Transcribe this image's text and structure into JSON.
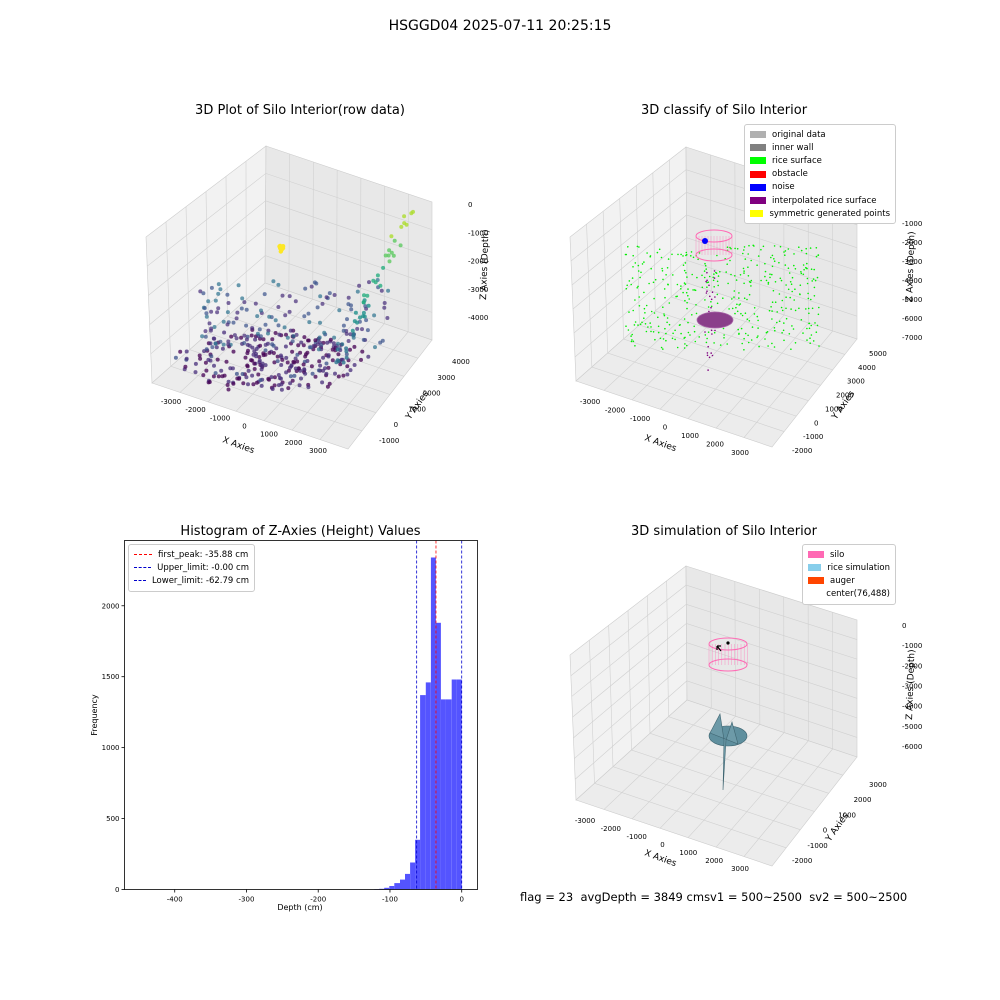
{
  "suptitle": "HSGGD04 2025-07-11 20:25:15",
  "colors": {
    "wall": "#f2f2f2",
    "grid": "#d0d0d0",
    "silo": "#ff69b4",
    "rice": "#5f8f9e",
    "histbar": "#4b4bff",
    "peak": "#ff0000",
    "limit": "#0000cc"
  },
  "chart_data": [
    {
      "id": "raw",
      "type": "scatter",
      "title": "3D Plot of Silo Interior(row data)",
      "xlabel": "X Axies",
      "ylabel": "Y Axies",
      "zlabel": "Z Axies (Depth)",
      "xlim": [
        -3500,
        3500
      ],
      "ylim": [
        -1500,
        4500
      ],
      "zlim": [
        -4500,
        0
      ],
      "xticks": [
        "-3000",
        "-2000",
        "-1000",
        "0",
        "1000",
        "2000",
        "3000"
      ],
      "yticks": [
        "-1000",
        "0",
        "1000",
        "2000",
        "3000",
        "4000"
      ],
      "zticks": [
        "-4000",
        "-3000",
        "-2000",
        "-1000",
        "0"
      ],
      "colormap": "viridis (colored by depth)",
      "grid": true
    },
    {
      "id": "classify",
      "type": "scatter",
      "title": "3D classify of Silo Interior",
      "xlabel": "X Axies",
      "ylabel": "Y Axies",
      "zlabel": "Z Axies (Depth)",
      "xticks": [
        "-3000",
        "-2000",
        "-1000",
        "0",
        "1000",
        "2000",
        "3000"
      ],
      "yticks": [
        "-2000",
        "-1000",
        "0",
        "1000",
        "2000",
        "3000",
        "4000",
        "5000"
      ],
      "zticks": [
        "-7000",
        "-6000",
        "-5000",
        "-4000",
        "-3000",
        "-2000",
        "-1000"
      ],
      "legend": [
        {
          "label": "original data",
          "color": "#b0b0b0"
        },
        {
          "label": "inner wall",
          "color": "#808080"
        },
        {
          "label": "rice surface",
          "color": "#00ff00"
        },
        {
          "label": "obstacle",
          "color": "#ff0000"
        },
        {
          "label": "noise",
          "color": "#0000ff"
        },
        {
          "label": "interpolated rice surface",
          "color": "#800080"
        },
        {
          "label": "symmetric generated points",
          "color": "#ffff00"
        }
      ],
      "legend_position": "top-right",
      "grid": true
    },
    {
      "id": "hist",
      "type": "bar",
      "title": "Histogram of Z-Axies (Height) Values",
      "xlabel": "Depth (cm)",
      "ylabel": "Frequency",
      "xlim": [
        -470,
        22
      ],
      "ylim": [
        0,
        2460
      ],
      "xticks": [
        -400,
        -300,
        -200,
        -100,
        0
      ],
      "yticks": [
        0,
        500,
        1000,
        1500,
        2000
      ],
      "bin_width": 7.2,
      "bins": [
        {
          "x0": -122,
          "x1": -115,
          "count": 2
        },
        {
          "x0": -115,
          "x1": -108,
          "count": 5
        },
        {
          "x0": -108,
          "x1": -101,
          "count": 12
        },
        {
          "x0": -101,
          "x1": -94,
          "count": 25
        },
        {
          "x0": -94,
          "x1": -86,
          "count": 45
        },
        {
          "x0": -86,
          "x1": -79,
          "count": 70
        },
        {
          "x0": -79,
          "x1": -72,
          "count": 110
        },
        {
          "x0": -72,
          "x1": -65,
          "count": 190
        },
        {
          "x0": -65,
          "x1": -58,
          "count": 350
        },
        {
          "x0": -58,
          "x1": -50,
          "count": 1370
        },
        {
          "x0": -50,
          "x1": -43,
          "count": 1460
        },
        {
          "x0": -43,
          "x1": -36,
          "count": 2340
        },
        {
          "x0": -36,
          "x1": -29,
          "count": 1880
        },
        {
          "x0": -29,
          "x1": -22,
          "count": 1340
        },
        {
          "x0": -22,
          "x1": -14,
          "count": 1340
        },
        {
          "x0": -14,
          "x1": -7,
          "count": 1480
        },
        {
          "x0": -7,
          "x1": 0,
          "count": 1480
        }
      ],
      "vlines": [
        {
          "label": "first_peak: -35.88 cm",
          "x": -35.88,
          "color": "#ff0000"
        },
        {
          "label": "Upper_limit: -0.00 cm",
          "x": 0,
          "color": "#0000cc"
        },
        {
          "label": "Lower_limit: -62.79 cm",
          "x": -62.79,
          "color": "#0000cc"
        }
      ],
      "legend_position": "top-left",
      "grid": false
    },
    {
      "id": "sim",
      "type": "surface",
      "title": "3D simulation of Silo Interior",
      "xlabel": "X Axies",
      "ylabel": "Y Axies",
      "zlabel": "Z Axies (Depth)",
      "xticks": [
        "-3000",
        "-2000",
        "-1000",
        "0",
        "1000",
        "2000",
        "3000"
      ],
      "yticks": [
        "-2000",
        "-1000",
        "0",
        "1000",
        "2000",
        "3000"
      ],
      "zticks": [
        "-6000",
        "-5000",
        "-4000",
        "-3000",
        "-2000",
        "-1000",
        "0"
      ],
      "legend": [
        {
          "label": "silo",
          "color": "#ff69b4"
        },
        {
          "label": "rice simulation",
          "color": "#87ceeb"
        },
        {
          "label": "auger",
          "color": "#ff4500"
        },
        {
          "label": "center(76,488)",
          "color": ""
        }
      ],
      "legend_position": "top-right",
      "grid": true
    }
  ],
  "footer": {
    "flag": "flag = 23",
    "avg": "avgDepth = 3849 cm",
    "sv1": "sv1 = 500~2500",
    "sv2": "sv2 = 500~2500"
  }
}
